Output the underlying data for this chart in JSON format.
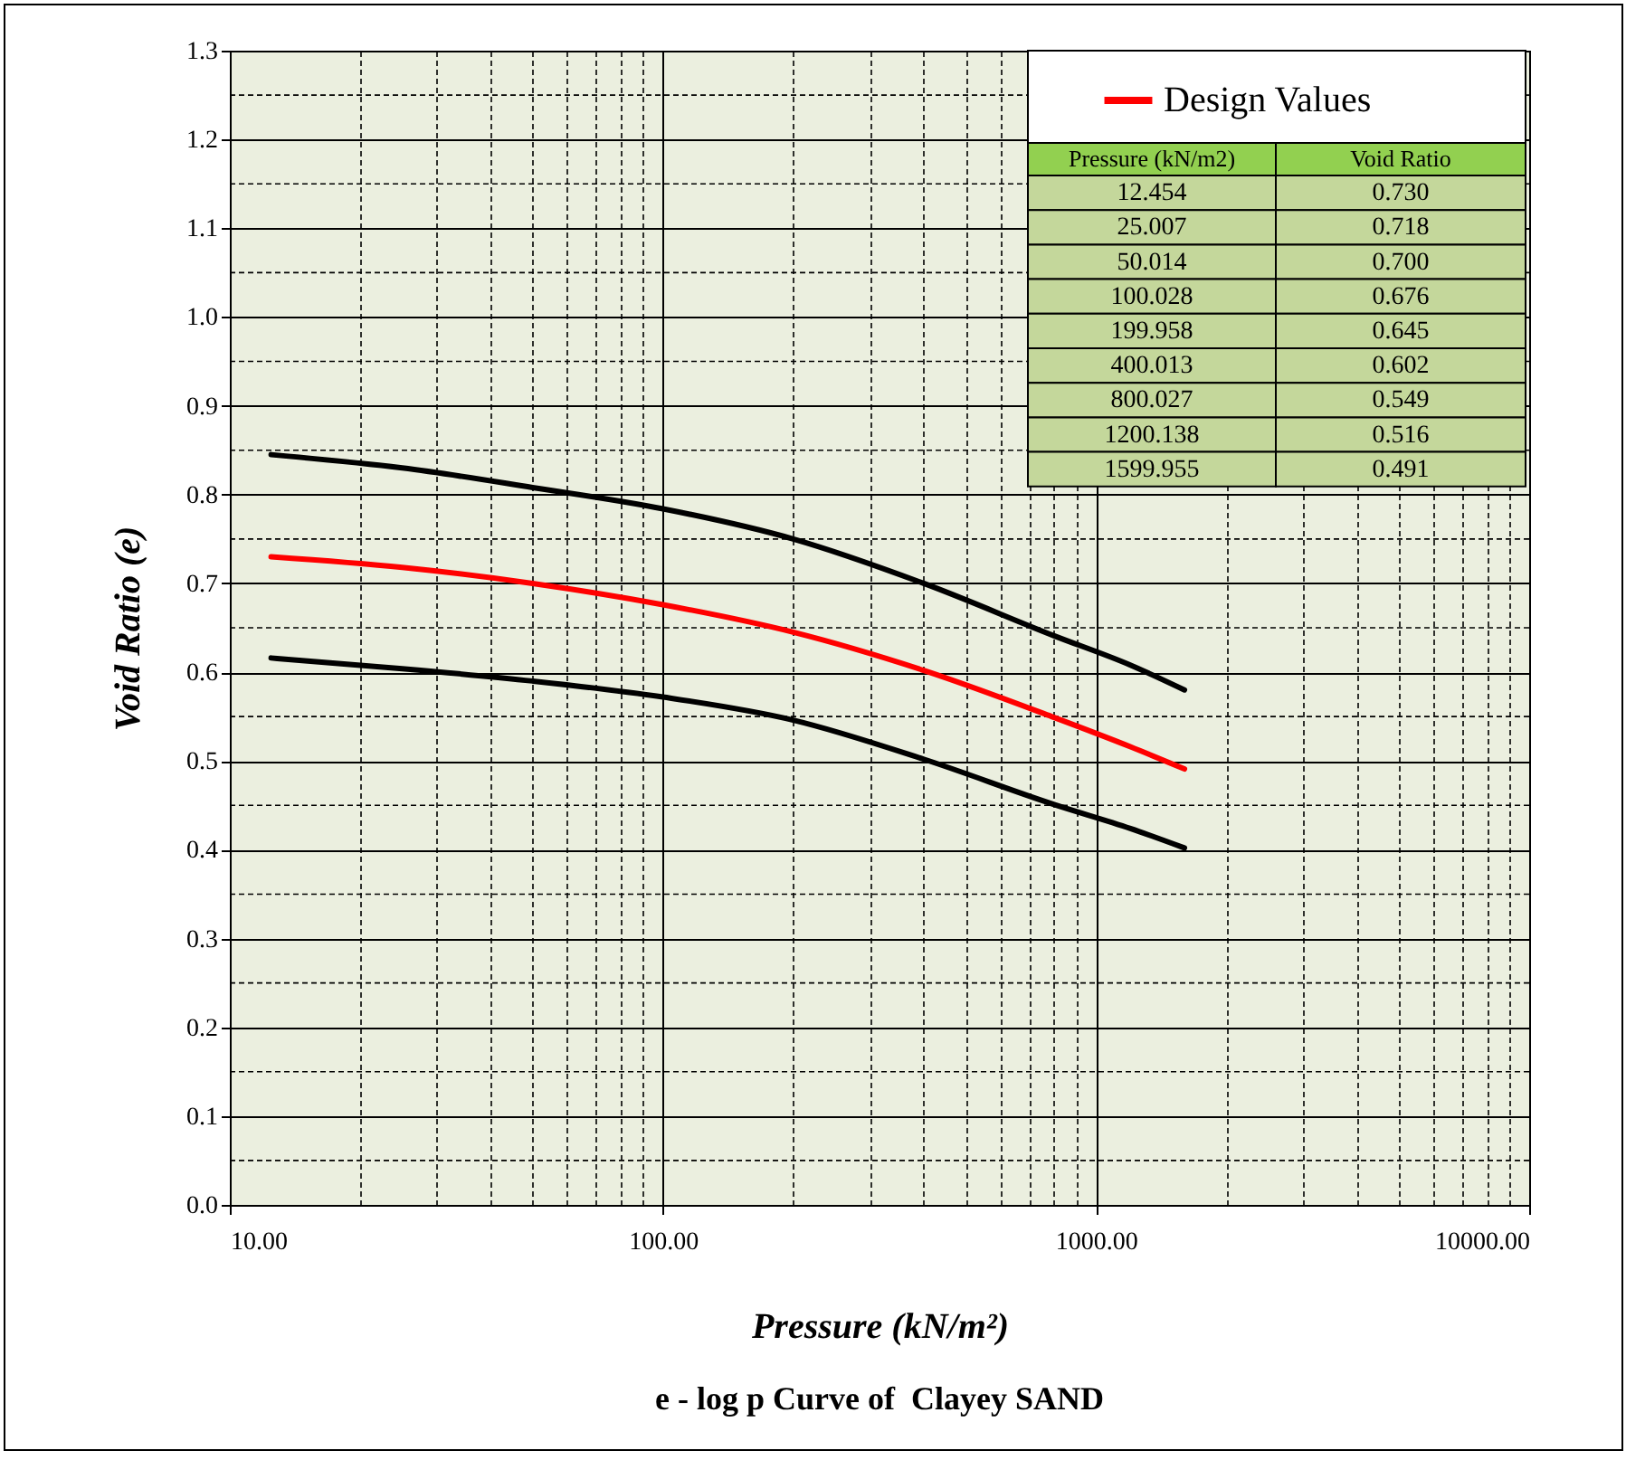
{
  "chart_data": {
    "type": "line",
    "title": "e - log p Curve of  Clayey SAND",
    "xlabel": "Pressure (kN/m²)",
    "ylabel": "Void Ratio (e)",
    "x": [
      12.454,
      25.007,
      50.014,
      100.028,
      199.958,
      400.013,
      800.027,
      1200.138,
      1599.955
    ],
    "series": [
      {
        "color": "#000000",
        "values": [
          0.845,
          0.83,
          0.808,
          0.784,
          0.75,
          0.7,
          0.641,
          0.608,
          0.58
        ]
      },
      {
        "name": "Design Values",
        "color": "#ff0000",
        "values": [
          0.73,
          0.718,
          0.7,
          0.676,
          0.645,
          0.602,
          0.549,
          0.516,
          0.491
        ]
      },
      {
        "color": "#000000",
        "values": [
          0.616,
          0.604,
          0.59,
          0.572,
          0.546,
          0.502,
          0.451,
          0.424,
          0.402
        ]
      }
    ],
    "annotations": [
      "Pressure (kN/m2)",
      "Void Ratio",
      "12.454",
      "0.730",
      "25.007",
      "0.718",
      "50.014",
      "0.700",
      "100.028",
      "0.676",
      "199.958",
      "0.645",
      "400.013",
      "0.602",
      "800.027",
      "0.549",
      "1200.138",
      "0.516",
      "1599.955",
      "0.491"
    ],
    "log": "x",
    "xlim": [
      10,
      10000
    ],
    "xticks": [
      {
        "value": 10,
        "label": "10.00"
      },
      {
        "value": 20,
        "label": null
      },
      {
        "value": 30,
        "label": null
      },
      {
        "value": 40,
        "label": null
      },
      {
        "value": 50,
        "label": null
      },
      {
        "value": 60,
        "label": null
      },
      {
        "value": 70,
        "label": null
      },
      {
        "value": 80,
        "label": null
      },
      {
        "value": 90,
        "label": null
      },
      {
        "value": 100,
        "label": "100.00"
      },
      {
        "value": 200,
        "label": null
      },
      {
        "value": 300,
        "label": null
      },
      {
        "value": 400,
        "label": null
      },
      {
        "value": 500,
        "label": null
      },
      {
        "value": 600,
        "label": null
      },
      {
        "value": 700,
        "label": null
      },
      {
        "value": 800,
        "label": null
      },
      {
        "value": 900,
        "label": null
      },
      {
        "value": 1000,
        "label": "1000.00"
      },
      {
        "value": 2000,
        "label": null
      },
      {
        "value": 3000,
        "label": null
      },
      {
        "value": 4000,
        "label": null
      },
      {
        "value": 5000,
        "label": null
      },
      {
        "value": 6000,
        "label": null
      },
      {
        "value": 7000,
        "label": null
      },
      {
        "value": 8000,
        "label": null
      },
      {
        "value": 9000,
        "label": null
      },
      {
        "value": 10000,
        "label": "10000.00"
      }
    ],
    "ylim": [
      0,
      1.3
    ],
    "yticks": [
      {
        "value": 0,
        "label": "0.0"
      },
      {
        "value": 0.05,
        "label": null
      },
      {
        "value": 0.1,
        "label": "0.1"
      },
      {
        "value": 0.15,
        "label": null
      },
      {
        "value": 0.2,
        "label": "0.2"
      },
      {
        "value": 0.25,
        "label": null
      },
      {
        "value": 0.3,
        "label": "0.3"
      },
      {
        "value": 0.35,
        "label": null
      },
      {
        "value": 0.4,
        "label": "0.4"
      },
      {
        "value": 0.45,
        "label": null
      },
      {
        "value": 0.5,
        "label": "0.5"
      },
      {
        "value": 0.55,
        "label": null
      },
      {
        "value": 0.6,
        "label": "0.6"
      },
      {
        "value": 0.65,
        "label": null
      },
      {
        "value": 0.7,
        "label": "0.7"
      },
      {
        "value": 0.75,
        "label": null
      },
      {
        "value": 0.8,
        "label": "0.8"
      },
      {
        "value": 0.85,
        "label": null
      },
      {
        "value": 0.9,
        "label": "0.9"
      },
      {
        "value": 0.95,
        "label": null
      },
      {
        "value": 1.0,
        "label": "1.0"
      },
      {
        "value": 1.05,
        "label": null
      },
      {
        "value": 1.1,
        "label": "1.1"
      },
      {
        "value": 1.15,
        "label": null
      },
      {
        "value": 1.2,
        "label": "1.2"
      },
      {
        "value": 1.25,
        "label": null
      },
      {
        "value": 1.3,
        "label": "1.3"
      }
    ],
    "grid": true,
    "legend": "top right"
  }
}
